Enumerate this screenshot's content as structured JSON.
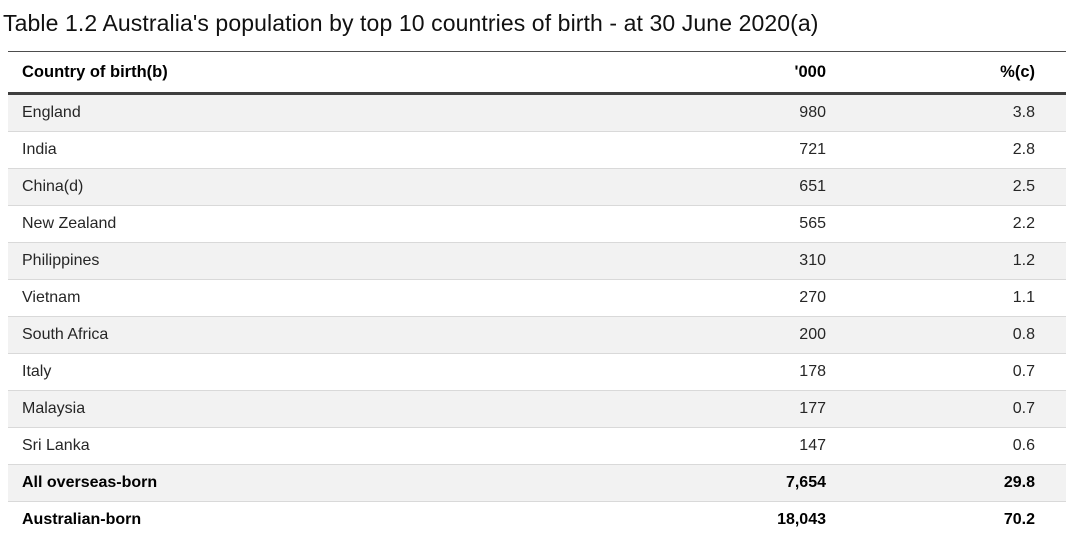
{
  "page": {
    "title": "Table 1.2 Australia's population by top 10 countries of birth - at 30 June 2020(a)"
  },
  "table": {
    "header": {
      "country": "Country of birth(b)",
      "thousands": "'000",
      "percent": "%(c)"
    },
    "rows": [
      {
        "country": "England",
        "thousands": "980",
        "percent": "3.8"
      },
      {
        "country": "India",
        "thousands": "721",
        "percent": "2.8"
      },
      {
        "country": "China(d)",
        "thousands": "651",
        "percent": "2.5"
      },
      {
        "country": "New Zealand",
        "thousands": "565",
        "percent": "2.2"
      },
      {
        "country": "Philippines",
        "thousands": "310",
        "percent": "1.2"
      },
      {
        "country": "Vietnam",
        "thousands": "270",
        "percent": "1.1"
      },
      {
        "country": "South Africa",
        "thousands": "200",
        "percent": "0.8"
      },
      {
        "country": "Italy",
        "thousands": "178",
        "percent": "0.7"
      },
      {
        "country": "Malaysia",
        "thousands": "177",
        "percent": "0.7"
      },
      {
        "country": "Sri Lanka",
        "thousands": "147",
        "percent": "0.6"
      },
      {
        "country": "All overseas-born",
        "thousands": "7,654",
        "percent": "29.8"
      },
      {
        "country": "Australian-born",
        "thousands": "18,043",
        "percent": "70.2"
      }
    ]
  },
  "colors": {
    "row_stripe": "#f2f2f2",
    "row_border": "#d9d9d9",
    "header_rule_thick": "#3f3f3f",
    "header_rule_thin": "#4d4d4d",
    "text": "#262626",
    "background": "#ffffff"
  },
  "chart_data": {
    "type": "table",
    "title": "Table 1.2 Australia's population by top 10 countries of birth - at 30 June 2020(a)",
    "columns": [
      "Country of birth(b)",
      "'000",
      "%(c)"
    ],
    "rows": [
      [
        "England",
        980,
        3.8
      ],
      [
        "India",
        721,
        2.8
      ],
      [
        "China(d)",
        651,
        2.5
      ],
      [
        "New Zealand",
        565,
        2.2
      ],
      [
        "Philippines",
        310,
        1.2
      ],
      [
        "Vietnam",
        270,
        1.1
      ],
      [
        "South Africa",
        200,
        0.8
      ],
      [
        "Italy",
        178,
        0.7
      ],
      [
        "Malaysia",
        177,
        0.7
      ],
      [
        "Sri Lanka",
        147,
        0.6
      ],
      [
        "All overseas-born",
        7654,
        29.8
      ],
      [
        "Australian-born",
        18043,
        70.2
      ]
    ]
  }
}
